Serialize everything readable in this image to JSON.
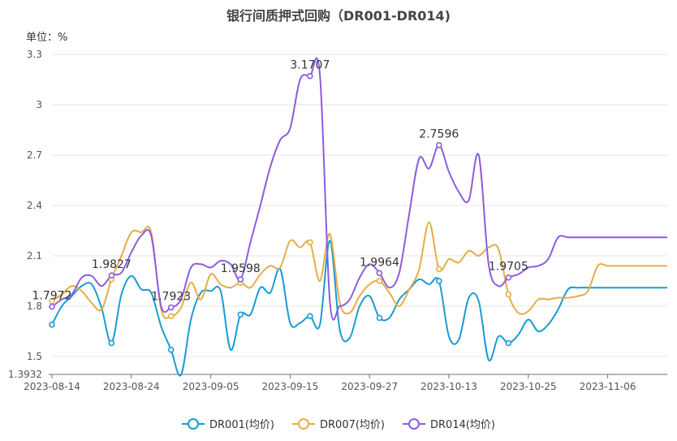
{
  "chart_data": {
    "type": "line",
    "title": "银行间质押式回购（DR001-DR014)",
    "unit_label": "单位：%",
    "yaxis_ticks": [
      "1.3932",
      "1.5",
      "1.8",
      "2.1",
      "2.4",
      "2.7",
      "3",
      "3.3"
    ],
    "ylim": [
      1.3932,
      3.3
    ],
    "xaxis_ticks": [
      "2023-08-14",
      "2023-08-24",
      "2023-09-05",
      "2023-09-15",
      "2023-09-27",
      "2023-10-13",
      "2023-10-25",
      "2023-11-06"
    ],
    "categories": [
      "2023-08-14",
      "2023-08-15",
      "2023-08-16",
      "2023-08-17",
      "2023-08-18",
      "2023-08-21",
      "2023-08-22",
      "2023-08-23",
      "2023-08-24",
      "2023-08-25",
      "2023-08-28",
      "2023-08-29",
      "2023-08-30",
      "2023-08-31",
      "2023-09-01",
      "2023-09-04",
      "2023-09-05",
      "2023-09-06",
      "2023-09-07",
      "2023-09-08",
      "2023-09-11",
      "2023-09-12",
      "2023-09-13",
      "2023-09-14",
      "2023-09-15",
      "2023-09-18",
      "2023-09-19",
      "2023-09-20",
      "2023-09-21",
      "2023-09-22",
      "2023-09-25",
      "2023-09-26",
      "2023-09-27",
      "2023-09-28",
      "2023-10-07",
      "2023-10-08",
      "2023-10-09",
      "2023-10-10",
      "2023-10-11",
      "2023-10-12",
      "2023-10-13",
      "2023-10-16",
      "2023-10-17",
      "2023-10-18",
      "2023-10-19",
      "2023-10-20",
      "2023-10-23",
      "2023-10-24",
      "2023-10-25",
      "2023-10-26",
      "2023-10-27",
      "2023-10-30",
      "2023-10-31",
      "2023-11-01",
      "2023-11-02",
      "2023-11-03",
      "2023-11-06",
      "2023-11-07",
      "2023-11-08",
      "2023-11-09",
      "2023-11-10",
      "2023-11-13",
      "2023-11-14"
    ],
    "series": [
      {
        "name": "DR001(均价)",
        "color": "#1a9bd4",
        "values": [
          1.69,
          1.8,
          1.86,
          1.92,
          1.93,
          1.79,
          1.58,
          1.87,
          1.98,
          1.9,
          1.88,
          1.68,
          1.54,
          1.39,
          1.72,
          1.88,
          1.89,
          1.89,
          1.54,
          1.75,
          1.75,
          1.91,
          1.88,
          2.02,
          1.7,
          1.7,
          1.74,
          1.69,
          2.19,
          1.66,
          1.61,
          1.8,
          1.86,
          1.73,
          1.73,
          1.84,
          1.9,
          1.96,
          1.93,
          1.95,
          1.62,
          1.6,
          1.85,
          1.83,
          1.48,
          1.62,
          1.58,
          1.63,
          1.72,
          1.65,
          1.69,
          1.78,
          1.9,
          1.91,
          1.91,
          1.91,
          1.91,
          1.91,
          1.91,
          1.91,
          1.91,
          1.91,
          1.91
        ]
      },
      {
        "name": "DR007(均价)",
        "color": "#e5ad47",
        "values": [
          1.83,
          1.87,
          1.92,
          1.89,
          1.82,
          1.78,
          1.96,
          2.1,
          2.24,
          2.24,
          2.24,
          1.78,
          1.74,
          1.79,
          1.94,
          1.84,
          1.99,
          1.93,
          1.91,
          1.94,
          1.91,
          1.99,
          2.04,
          2.03,
          2.19,
          2.15,
          2.18,
          1.95,
          2.23,
          1.82,
          1.76,
          1.86,
          1.93,
          1.95,
          1.88,
          1.8,
          1.9,
          2.02,
          2.3,
          2.02,
          2.08,
          2.06,
          2.13,
          2.1,
          2.15,
          2.14,
          1.87,
          1.76,
          1.77,
          1.84,
          1.84,
          1.85,
          1.85,
          1.86,
          1.89,
          2.04,
          2.04,
          2.04,
          2.04,
          2.04,
          2.04,
          2.04,
          2.04
        ]
      },
      {
        "name": "DR014(均价)",
        "color": "#8d5ce0",
        "values": [
          1.7972,
          1.84,
          1.87,
          1.97,
          1.98,
          1.92,
          1.9827,
          2.0,
          2.12,
          2.22,
          2.22,
          1.8,
          1.7923,
          1.84,
          2.03,
          2.05,
          2.03,
          2.07,
          2.05,
          1.9598,
          2.18,
          2.4,
          2.63,
          2.79,
          2.86,
          3.15,
          3.1707,
          3.18,
          1.83,
          1.8,
          1.84,
          1.97,
          2.05,
          1.9964,
          1.91,
          2.0,
          2.35,
          2.68,
          2.62,
          2.7596,
          2.6,
          2.48,
          2.43,
          2.7,
          2.05,
          1.92,
          1.9705,
          1.99,
          2.03,
          2.04,
          2.08,
          2.21,
          2.21,
          2.21,
          2.21,
          2.21,
          2.21,
          2.21,
          2.21,
          2.21,
          2.21,
          2.21,
          2.21
        ]
      }
    ],
    "data_labels": [
      {
        "text": "1.7972"
      },
      {
        "text": "1.9827"
      },
      {
        "text": "1.7923"
      },
      {
        "text": "1.9598"
      },
      {
        "text": "3.1707"
      },
      {
        "text": "1.9964"
      },
      {
        "text": "2.7596"
      },
      {
        "text": "1.9705"
      }
    ],
    "grid": true,
    "legend_position": "bottom"
  }
}
